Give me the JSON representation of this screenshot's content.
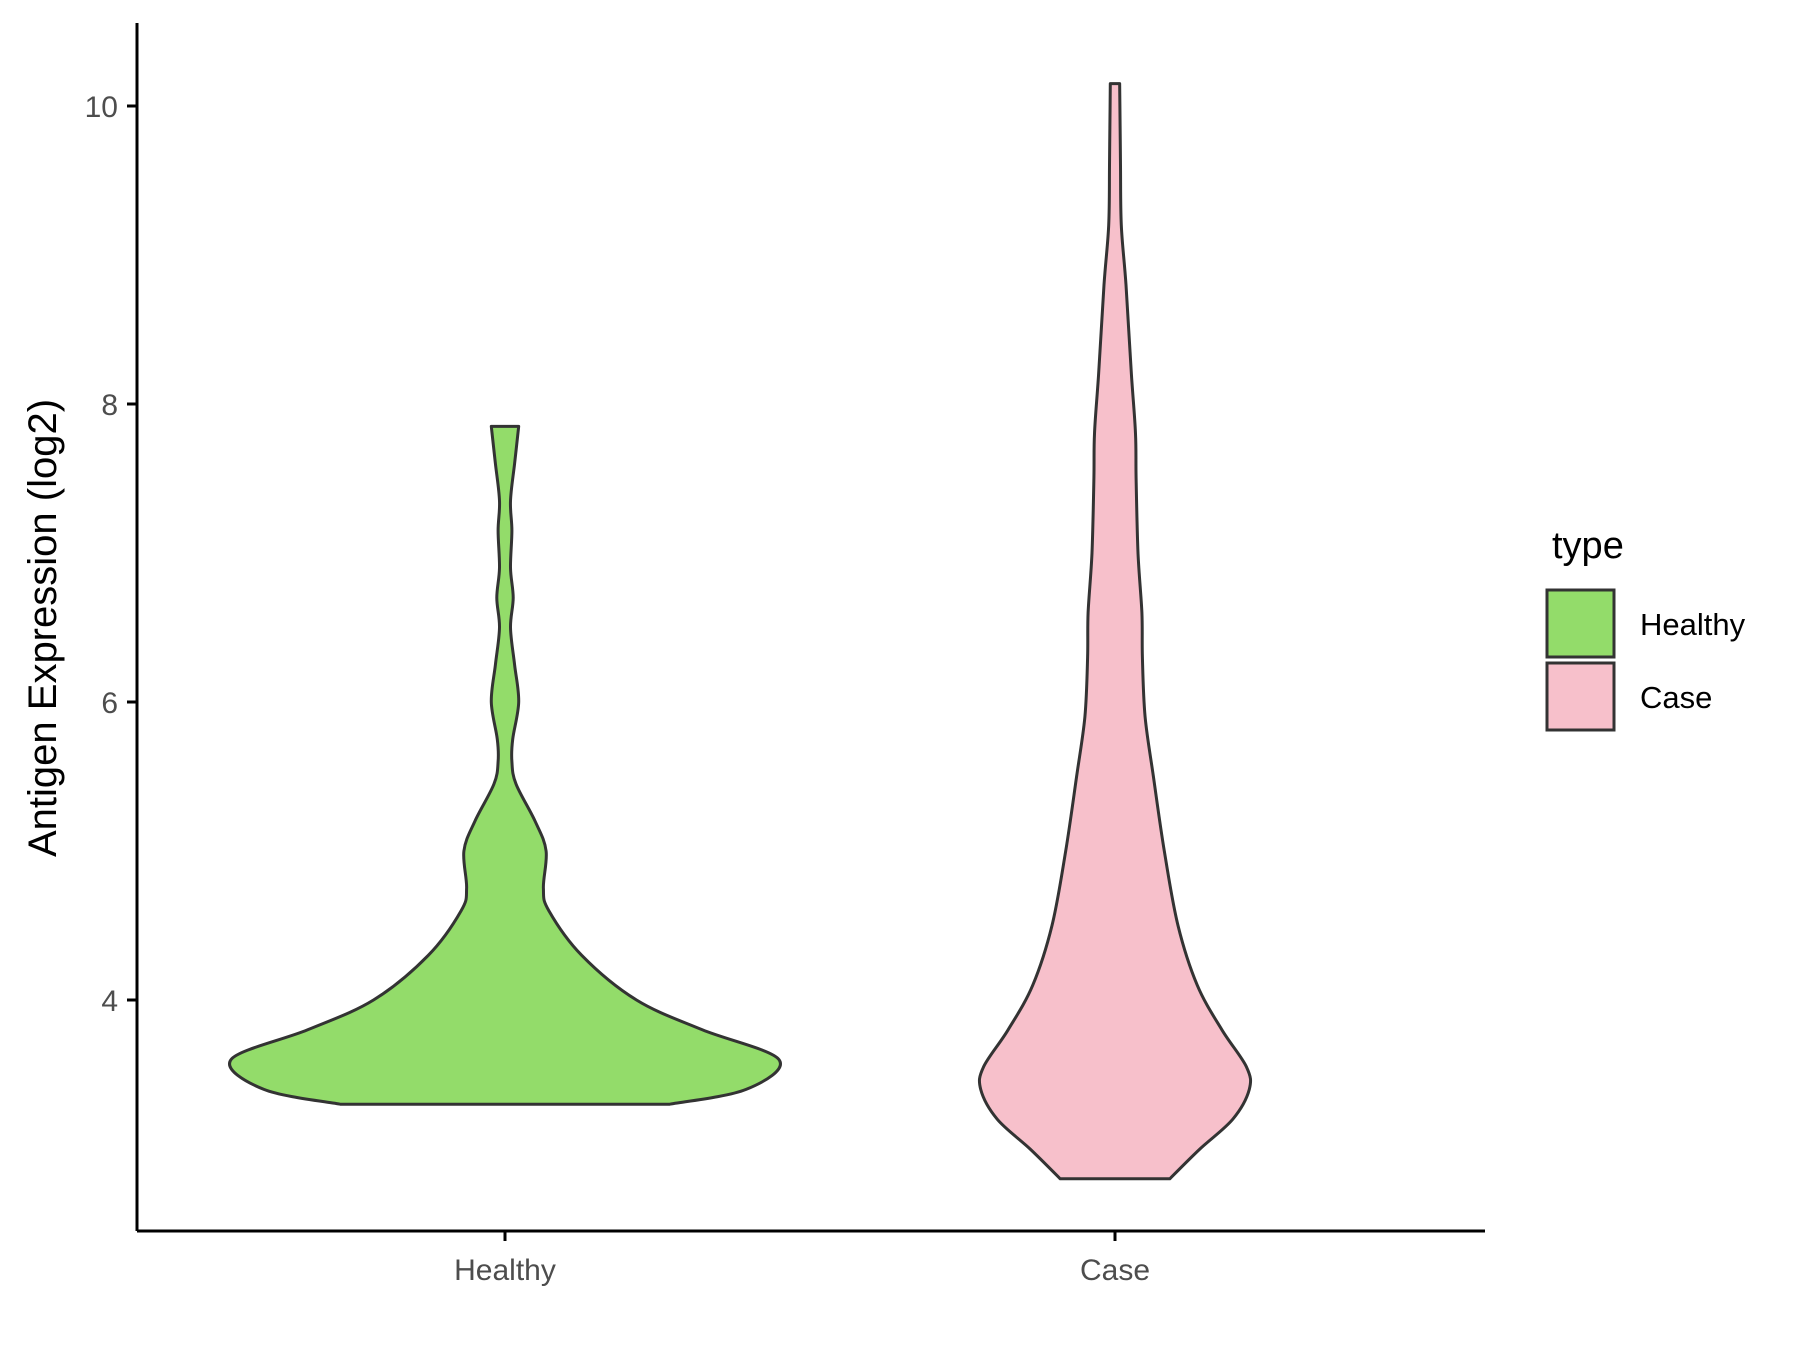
{
  "chart_data": {
    "type": "violin",
    "title": "",
    "xlabel": "",
    "ylabel": "Antigen Expression (log2)",
    "ylim": [
      2.7,
      10.5
    ],
    "yticks": [
      4,
      6,
      8,
      10
    ],
    "categories": [
      "Healthy",
      "Case"
    ],
    "grid": false,
    "legend": {
      "title": "type",
      "position": "right",
      "entries": [
        {
          "label": "Healthy",
          "color": "#93dc6a"
        },
        {
          "label": "Case",
          "color": "#f7c0cb"
        }
      ]
    },
    "series": [
      {
        "category": "Healthy",
        "color": "#93dc6a",
        "min": 3.3,
        "max": 7.85,
        "density_profile": [
          [
            3.3,
            0.6
          ],
          [
            3.4,
            0.88
          ],
          [
            3.6,
            1.0
          ],
          [
            3.8,
            0.72
          ],
          [
            4.0,
            0.48
          ],
          [
            4.3,
            0.28
          ],
          [
            4.6,
            0.16
          ],
          [
            4.75,
            0.14
          ],
          [
            5.0,
            0.15
          ],
          [
            5.2,
            0.11
          ],
          [
            5.45,
            0.04
          ],
          [
            5.6,
            0.025
          ],
          [
            5.75,
            0.028
          ],
          [
            6.0,
            0.05
          ],
          [
            6.25,
            0.035
          ],
          [
            6.5,
            0.02
          ],
          [
            6.7,
            0.03
          ],
          [
            6.9,
            0.02
          ],
          [
            7.15,
            0.025
          ],
          [
            7.35,
            0.02
          ],
          [
            7.6,
            0.035
          ],
          [
            7.85,
            0.05
          ]
        ]
      },
      {
        "category": "Case",
        "color": "#f7c0cb",
        "min": 2.8,
        "max": 10.15,
        "density_profile": [
          [
            2.8,
            0.2
          ],
          [
            3.0,
            0.31
          ],
          [
            3.2,
            0.43
          ],
          [
            3.4,
            0.49
          ],
          [
            3.55,
            0.48
          ],
          [
            3.8,
            0.39
          ],
          [
            4.1,
            0.3
          ],
          [
            4.5,
            0.23
          ],
          [
            5.0,
            0.18
          ],
          [
            5.5,
            0.14
          ],
          [
            5.9,
            0.11
          ],
          [
            6.3,
            0.1
          ],
          [
            6.6,
            0.098
          ],
          [
            7.0,
            0.084
          ],
          [
            7.5,
            0.077
          ],
          [
            7.8,
            0.075
          ],
          [
            8.2,
            0.06
          ],
          [
            8.8,
            0.04
          ],
          [
            9.2,
            0.023
          ],
          [
            9.6,
            0.02
          ],
          [
            10.0,
            0.018
          ],
          [
            10.15,
            0.017
          ]
        ]
      }
    ]
  }
}
